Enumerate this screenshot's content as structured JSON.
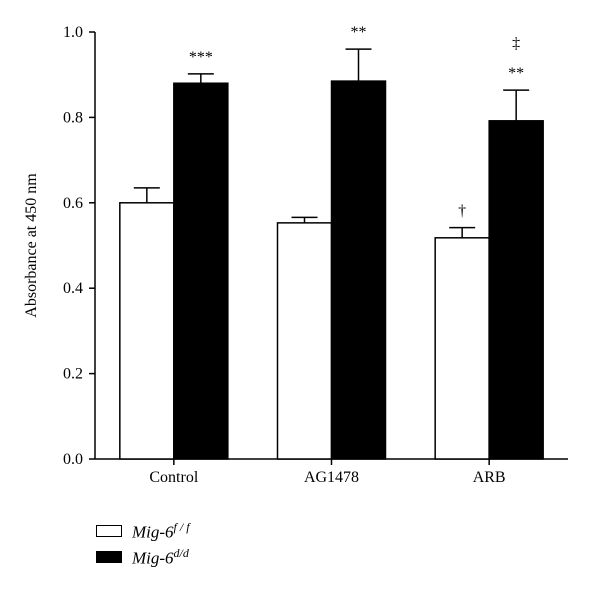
{
  "chart_data": {
    "type": "bar",
    "ylabel": "Absorbance at 450 nm",
    "xlabel": "",
    "ylim": [
      0,
      1.0
    ],
    "yticks": [
      "0.0",
      "0.2",
      "0.4",
      "0.6",
      "0.8",
      "1.0"
    ],
    "grid": false,
    "legend_position": "bottom-left",
    "categories": [
      "Control",
      "AG1478",
      "ARB"
    ],
    "series": [
      {
        "label_base": "Mig-6",
        "label_sup": "f / f",
        "color": "#ffffff",
        "values": [
          0.6,
          0.553,
          0.518
        ],
        "errors": [
          0.035,
          0.013,
          0.024
        ],
        "annotations": [
          "",
          "",
          "†"
        ]
      },
      {
        "label_base": "Mig-6",
        "label_sup": "d/d",
        "color": "#000000",
        "values": [
          0.88,
          0.885,
          0.792
        ],
        "errors": [
          0.022,
          0.075,
          0.072
        ],
        "annotations": [
          "***",
          "**",
          "**"
        ],
        "annotations_top": [
          "",
          "",
          "‡"
        ]
      }
    ]
  }
}
